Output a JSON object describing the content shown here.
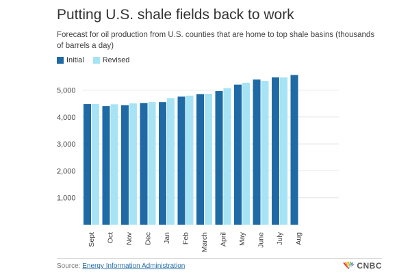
{
  "title": "Putting U.S. shale fields back to work",
  "subtitle": "Forecast for oil production from U.S. counties that are home to top shale basins (thousands of barrels a day)",
  "legend": {
    "initial": "Initial",
    "revised": "Revised"
  },
  "colors": {
    "initial": "#1f6aa5",
    "revised": "#a6e4f5",
    "grid": "#e3e3e3",
    "tick": "#444444"
  },
  "chart_data": {
    "type": "bar",
    "categories": [
      "Sept",
      "Oct",
      "Nov",
      "Dec",
      "Jan",
      "Feb",
      "March",
      "April",
      "May",
      "June",
      "July",
      "Aug"
    ],
    "series": [
      {
        "name": "Initial",
        "values": [
          4480,
          4400,
          4440,
          4520,
          4550,
          4760,
          4850,
          4960,
          5200,
          5390,
          5470,
          5560
        ]
      },
      {
        "name": "Revised",
        "values": [
          4480,
          4470,
          4510,
          4550,
          4700,
          4790,
          4860,
          5070,
          5270,
          5340,
          5470,
          null
        ]
      }
    ],
    "yticks": [
      1000,
      2000,
      3000,
      4000,
      5000
    ],
    "ytick_labels": [
      "1,000",
      "2,000",
      "3,000",
      "4,000",
      "5,000"
    ],
    "ylim": [
      0,
      5800
    ],
    "grid": true,
    "legend_position": "top-left"
  },
  "source": {
    "label": "Source:",
    "text": "Energy Information Administration"
  },
  "brand": {
    "text": "CNBC",
    "icon": "peacock-icon"
  }
}
